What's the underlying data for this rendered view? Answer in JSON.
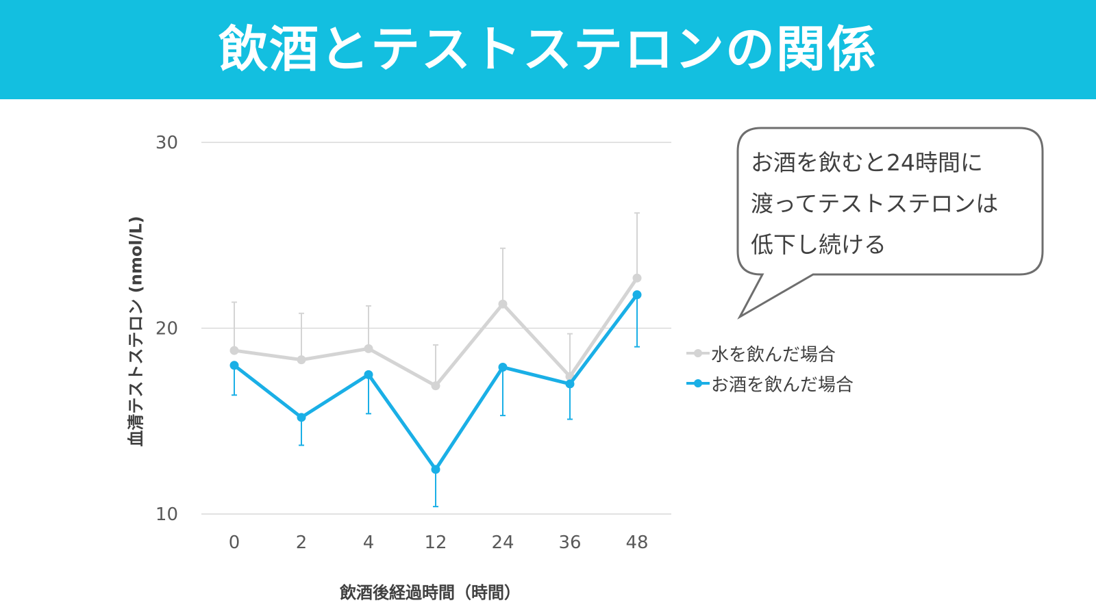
{
  "title": "飲酒とテストステロンの関係",
  "callout": {
    "lines": [
      "お酒を飲むと24時間に",
      "渡ってテストステロンは",
      "低下し続ける"
    ]
  },
  "colors": {
    "header": "#13bfe0",
    "water": "#d4d4d4",
    "alcohol": "#1aafe6",
    "grid": "#d9d9d9",
    "text": "#595959"
  },
  "chart_data": {
    "type": "line",
    "xlabel": "飲酒後経過時間（時間）",
    "ylabel": "血清テストステロン (nmol/L)",
    "categories": [
      "0",
      "2",
      "4",
      "12",
      "24",
      "36",
      "48"
    ],
    "ylim": [
      10,
      30
    ],
    "yticks": [
      "10",
      "20",
      "30"
    ],
    "grid": true,
    "legend_position": "right",
    "series": [
      {
        "name": "水を飲んだ場合",
        "color": "#d4d4d4",
        "values": [
          18.8,
          18.3,
          18.9,
          16.9,
          21.3,
          17.4,
          22.7
        ],
        "error_plus": [
          2.6,
          2.5,
          2.3,
          2.2,
          3.0,
          2.3,
          3.5
        ]
      },
      {
        "name": "お酒を飲んだ場合",
        "color": "#1aafe6",
        "values": [
          18.0,
          15.2,
          17.5,
          12.4,
          17.9,
          17.0,
          21.8
        ],
        "error_minus": [
          1.6,
          1.5,
          2.1,
          2.0,
          2.6,
          1.9,
          2.8
        ]
      }
    ]
  }
}
